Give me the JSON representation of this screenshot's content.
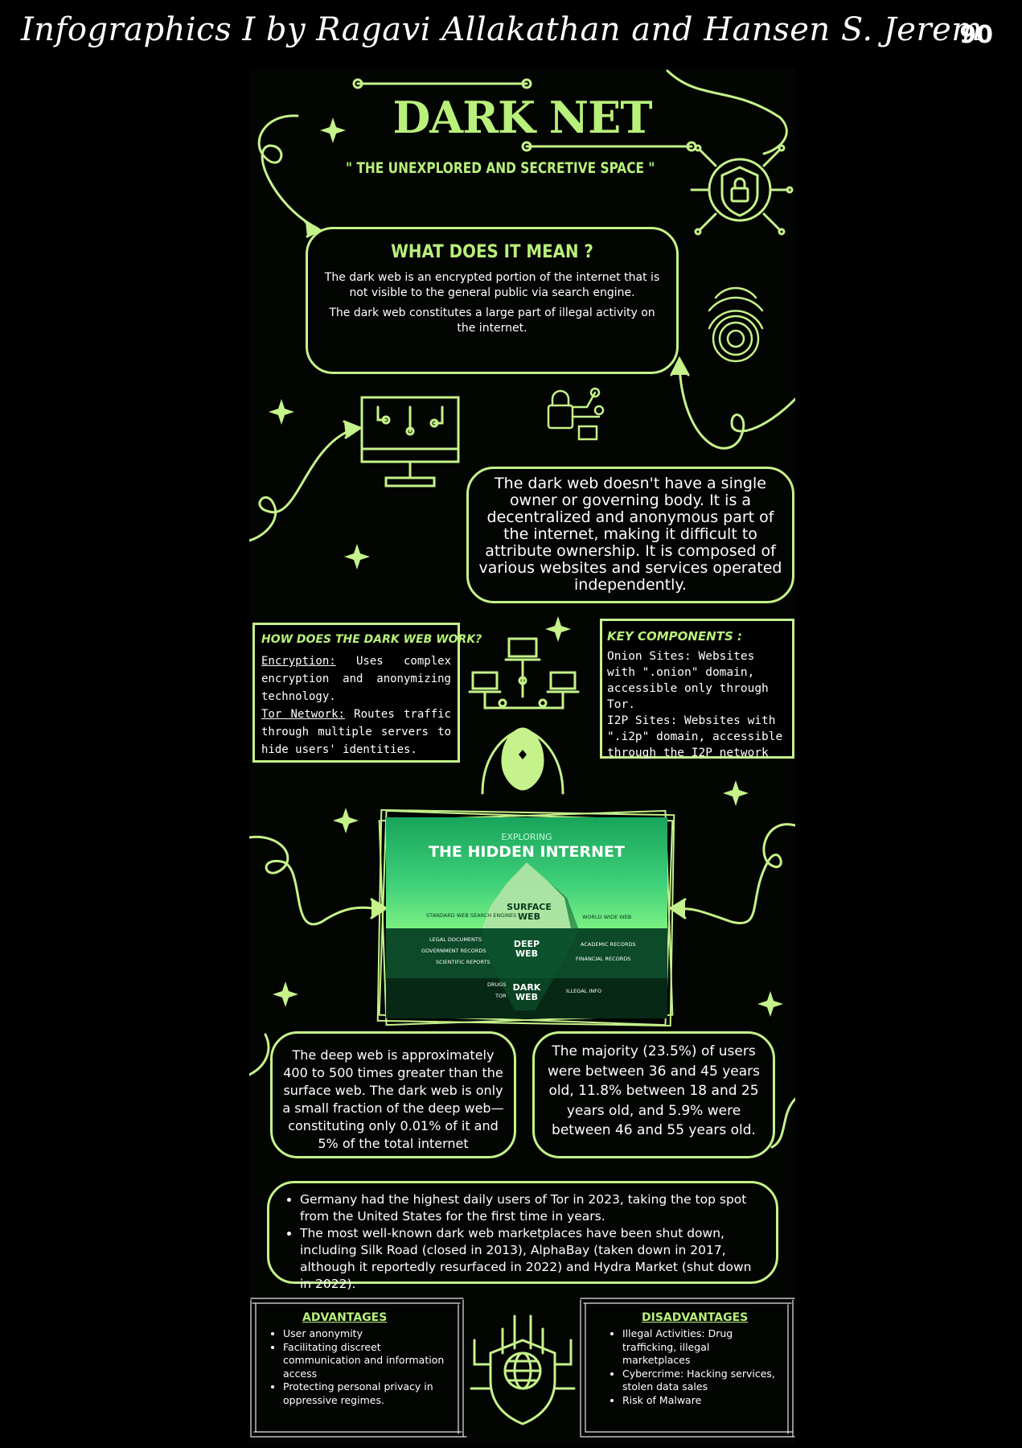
{
  "header": {
    "title": "Infographics I by Ragavi Allakathan and Hansen S. Jerem",
    "page_number": "90"
  },
  "poster": {
    "title": "DARK NET",
    "subtitle": "\" THE UNEXPLORED AND SECRETIVE SPACE \"",
    "meaning": {
      "heading": "WHAT DOES IT MEAN ?",
      "p1": "The dark web is an encrypted portion of the internet that is not visible to the general public via search engine.",
      "p2": "The dark web constitutes a large part of illegal activity on the internet."
    },
    "ownership_text": "The dark web doesn't have a single owner or governing body. It is a decentralized and anonymous part of the internet, making it difficult to attribute ownership. It is composed of various websites and services operated independently.",
    "how": {
      "heading": "HOW DOES THE DARK WEB WORK?",
      "item1_term": "Encryption:",
      "item1_text": " Uses complex encryption and anonymizing technology.",
      "item2_term": "Tor Network:",
      "item2_text": " Routes traffic through multiple servers to hide users' identities."
    },
    "key": {
      "heading": "KEY COMPONENTS :",
      "text1": "Onion Sites: Websites with \".onion\" domain, accessible only through Tor.",
      "text2": "I2P Sites: Websites with \".i2p\" domain, accessible through the I2P network"
    },
    "iceberg": {
      "kicker": "EXPLORING",
      "title": "THE HIDDEN INTERNET",
      "surface": "SURFACE WEB",
      "deep": "DEEP WEB",
      "dark": "DARK WEB",
      "left_top": "STANDARD WEB SEARCH ENGINES",
      "right_top": "WORLD WIDE WEB",
      "left_mid1": "LEGAL DOCUMENTS",
      "left_mid2": "GOVERNMENT RECORDS",
      "left_mid3": "SCIENTIFIC REPORTS",
      "right_mid1": "ACADEMIC RECORDS",
      "right_mid2": "FINANCIAL RECORDS",
      "left_bot1": "DRUGS",
      "left_bot2": "TOR",
      "right_bot": "ILLEGAL INFO"
    },
    "stat1": "The deep web is approximately 400 to 500 times greater than the surface web. The dark web is only a small fraction of the deep web—constituting only 0.01% of it and 5% of the total internet",
    "stat2": "The majority (23.5%) of users were between 36 and 45 years old, 11.8% between 18 and 25 years old, and 5.9% were between 46 and 55 years old.",
    "facts": [
      "Germany had the highest daily users of Tor in 2023, taking the top spot from the United States for the first time in years.",
      "The most well-known dark web marketplaces have been shut down, including Silk Road (closed in 2013), AlphaBay (taken down in 2017, although it reportedly resurfaced in 2022) and Hydra Market (shut down in 2022)."
    ],
    "advantages": {
      "heading": "ADVANTAGES",
      "items": [
        "User anonymity",
        "Facilitating discreet communication and information access",
        "Protecting personal privacy in oppressive regimes."
      ]
    },
    "disadvantages": {
      "heading": "DISADVANTAGES",
      "items": [
        "Illegal Activities: Drug trafficking, illegal marketplaces",
        "Cybercrime: Hacking services, stolen data sales",
        "Risk of Malware"
      ]
    }
  },
  "colors": {
    "accent": "#c5f28a",
    "background": "#000000",
    "text": "#ffffff"
  }
}
